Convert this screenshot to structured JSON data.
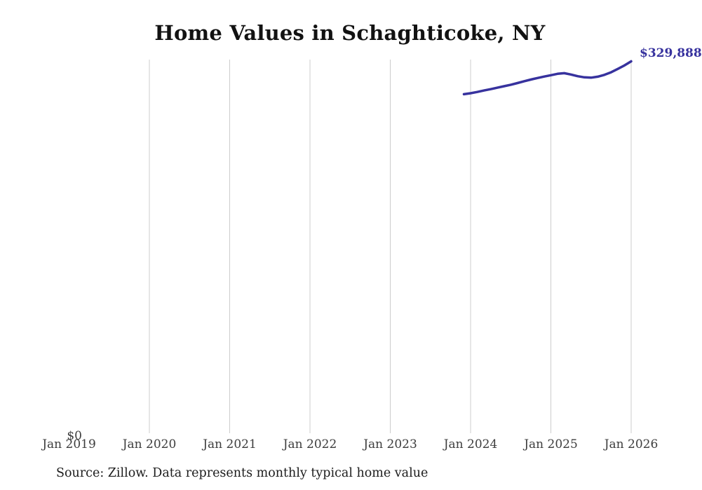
{
  "title": "Home Values in Schaghticoke, NY",
  "source_note": "Source: Zillow. Data represents monthly typical home value",
  "y_zero_label": "$0",
  "latest_value_label": "$329,888",
  "colors": {
    "line": "#37329e",
    "value_label": "#37329e",
    "gridline": "#cccccc",
    "axis_text": "#3d3d3d",
    "title_text": "#121212",
    "source_text": "#1c1c1c",
    "background": "#ffffff"
  },
  "x_axis": {
    "tick_labels": [
      "Jan 2019",
      "Jan 2020",
      "Jan 2021",
      "Jan 2022",
      "Jan 2023",
      "Jan 2024",
      "Jan 2025",
      "Jan 2026"
    ]
  },
  "chart_data": {
    "type": "line",
    "title": "Home Values in Schaghticoke, NY",
    "series_name": "Monthly typical home value (USD)",
    "x": [
      "Dec 2023",
      "Jan 2024",
      "Feb 2024",
      "Mar 2024",
      "Apr 2024",
      "May 2024",
      "Jun 2024",
      "Jul 2024",
      "Aug 2024",
      "Sep 2024",
      "Oct 2024",
      "Nov 2024",
      "Dec 2024",
      "Jan 2025",
      "Feb 2025",
      "Mar 2025",
      "Apr 2025",
      "May 2025",
      "Jun 2025",
      "Jul 2025",
      "Aug 2025",
      "Sep 2025",
      "Oct 2025",
      "Nov 2025",
      "Dec 2025",
      "Jan 2026"
    ],
    "values": [
      300700,
      301600,
      302700,
      304000,
      305200,
      306500,
      307800,
      309100,
      310600,
      312200,
      313700,
      315100,
      316400,
      317600,
      318800,
      319400,
      318200,
      316700,
      315700,
      315400,
      316300,
      317900,
      320200,
      323200,
      326300,
      329888
    ],
    "xlabel": "",
    "ylabel": "",
    "ylim": [
      0,
      330000
    ],
    "x_tick_labels": [
      "Jan 2019",
      "Jan 2020",
      "Jan 2021",
      "Jan 2022",
      "Jan 2023",
      "Jan 2024",
      "Jan 2025",
      "Jan 2026"
    ],
    "y_tick_labels": [
      "$0"
    ],
    "grid": "vertical gridlines at each January, 2020-2026",
    "legend": "none",
    "end_annotation": "$329,888"
  }
}
